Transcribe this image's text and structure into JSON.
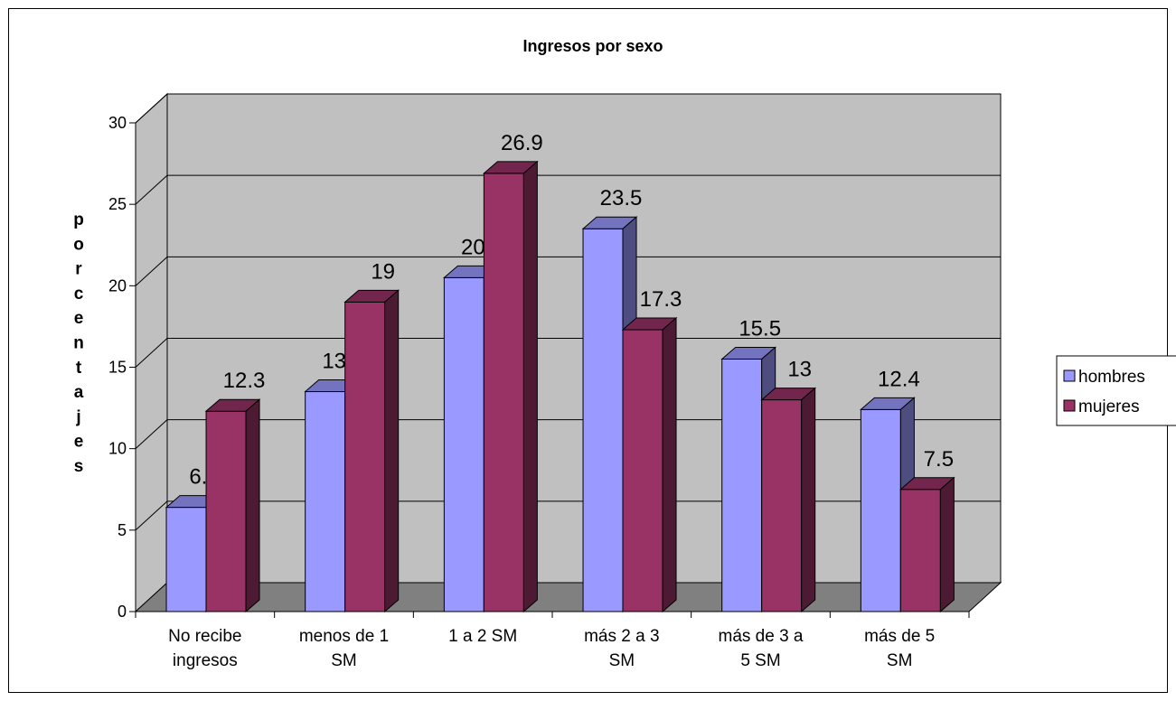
{
  "chart_data": {
    "type": "bar",
    "title": "Ingresos por sexo",
    "ylabel": "porcentajes",
    "xlabel": "",
    "categories": [
      [
        "No recibe",
        "ingresos"
      ],
      [
        "menos de 1",
        "SM"
      ],
      [
        "1 a 2 SM"
      ],
      [
        "más  2 a 3",
        "SM"
      ],
      [
        "más de 3 a",
        "5 SM"
      ],
      [
        "más de 5",
        "SM"
      ]
    ],
    "series": [
      {
        "name": "hombres",
        "values": [
          6.4,
          13.5,
          20.5,
          23.5,
          15.5,
          12.4
        ],
        "color": "#9999ff"
      },
      {
        "name": "mujeres",
        "values": [
          12.3,
          19,
          26.9,
          17.3,
          13,
          7.5
        ],
        "color": "#993366"
      }
    ],
    "ylim": [
      0,
      30
    ],
    "yticks": [
      "0",
      "5",
      "10",
      "15",
      "20",
      "25",
      "30"
    ],
    "grid": true,
    "legend_position": "right",
    "wall_color": "#c0c0c0",
    "floor_color": "#808080"
  }
}
